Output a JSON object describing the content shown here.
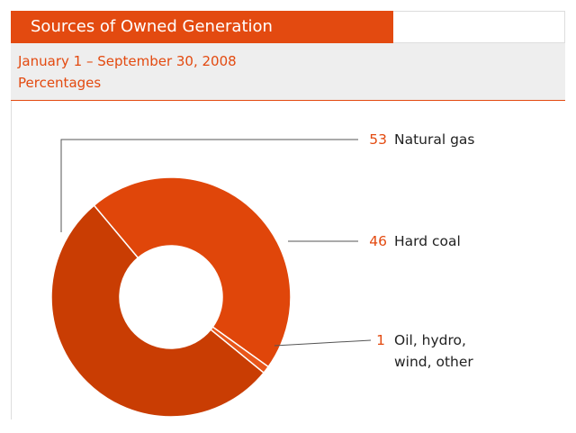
{
  "chart_data": {
    "type": "donut",
    "title": "Sources of Owned Generation",
    "subtitle": "January 1 – September 30, 2008",
    "unit": "Percentages",
    "categories": [
      "Natural gas",
      "Hard coal",
      "Oil, hydro, wind, other"
    ],
    "values": [
      53,
      46,
      1
    ],
    "colors": [
      "#c93d03",
      "#e0460a",
      "#e8561a"
    ]
  }
}
